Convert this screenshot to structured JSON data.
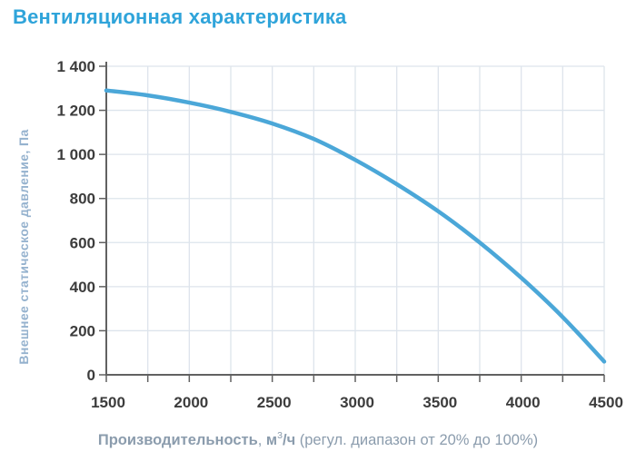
{
  "title": {
    "text": "Вентиляционная характеристика"
  },
  "chart_data": {
    "type": "line",
    "title": "Вентиляционная характеристика",
    "xlabel": "Производительность, м³/ч (регул. диапазон от 20% до 100%)",
    "ylabel": "Внешнее статическое давление, Па",
    "xlim": [
      1500,
      4500
    ],
    "ylim": [
      0,
      1400
    ],
    "grid": true,
    "legend_position": "none",
    "x_tick_values": [
      1500,
      2000,
      2500,
      3000,
      3500,
      4000,
      4500
    ],
    "x_tick_labels": [
      "1500",
      "2000",
      "2500",
      "3000",
      "3500",
      "4000",
      "4500"
    ],
    "x_minor_step": 250,
    "y_tick_values": [
      0,
      200,
      400,
      600,
      800,
      1000,
      1200,
      1400
    ],
    "y_tick_labels": [
      "0",
      "200",
      "400",
      "600",
      "800",
      "1 000",
      "1 200",
      "1 400"
    ],
    "series": [
      {
        "name": "Внешнее статическое давление, Па",
        "x": [
          1500,
          1750,
          2000,
          2250,
          2500,
          2750,
          3000,
          3250,
          3500,
          3750,
          4000,
          4250,
          4500
        ],
        "y": [
          1290,
          1268,
          1235,
          1193,
          1140,
          1070,
          975,
          865,
          742,
          600,
          440,
          262,
          60
        ]
      }
    ]
  },
  "axis_caption": {
    "name_bold": "Производительность",
    "separator": ", ",
    "unit_base": "м",
    "unit_sup": "3",
    "unit_tail": "/ч",
    "note": " (регул. диапазон от 20% до 100%)"
  },
  "colors": {
    "title": "#2fa4da",
    "curve": "#4ba7d8",
    "grid": "#dde4ec",
    "axis": "#616161",
    "tick_text": "#3c3c3c",
    "y_axis_title": "#95b2ce",
    "caption": "#8b9cad"
  }
}
